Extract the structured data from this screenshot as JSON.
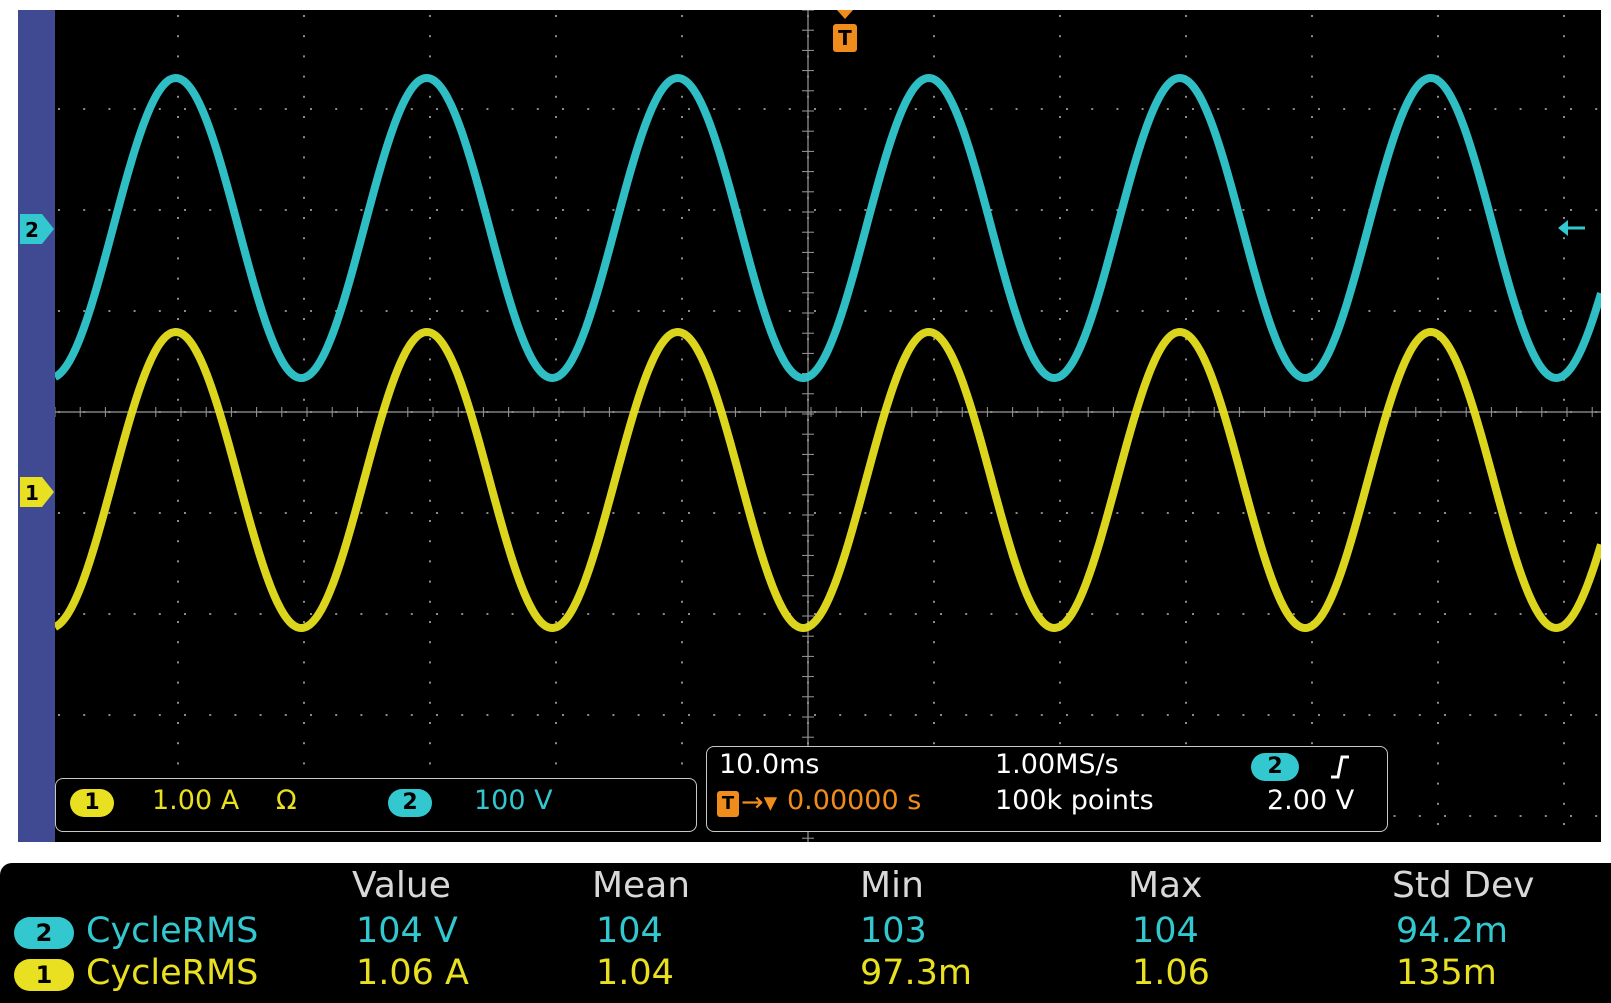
{
  "colors": {
    "ch1": "#e8e020",
    "ch2": "#33c8d0",
    "trigger": "#f08c1c",
    "rail": "#3f4a92"
  },
  "markers": {
    "ch1": "1",
    "ch2": "2",
    "trigger": "T"
  },
  "vertical_settings": {
    "ch1_label": "1",
    "ch1_scale": "1.00 A",
    "ch1_unit_symbol": "Ω",
    "ch2_label": "2",
    "ch2_scale": "100 V"
  },
  "horizontal": {
    "time_div": "10.0ms",
    "sample_rate": "1.00MS/s",
    "trigger_source": "2",
    "trigger_slope_icon": "rising-edge-icon",
    "trigger_position": "0.00000 s",
    "record_length": "100k points",
    "trigger_level": "2.00 V"
  },
  "measurements": {
    "headers": [
      "Value",
      "Mean",
      "Min",
      "Max",
      "Std Dev"
    ],
    "rows": [
      {
        "channel": "2",
        "name": "CycleRMS",
        "value": "104 V",
        "mean": "104",
        "min": "103",
        "max": "104",
        "std_dev": "94.2m"
      },
      {
        "channel": "1",
        "name": "CycleRMS",
        "value": "1.06 A",
        "mean": "1.04",
        "min": "97.3m",
        "max": "1.06",
        "std_dev": "135m"
      }
    ]
  }
}
